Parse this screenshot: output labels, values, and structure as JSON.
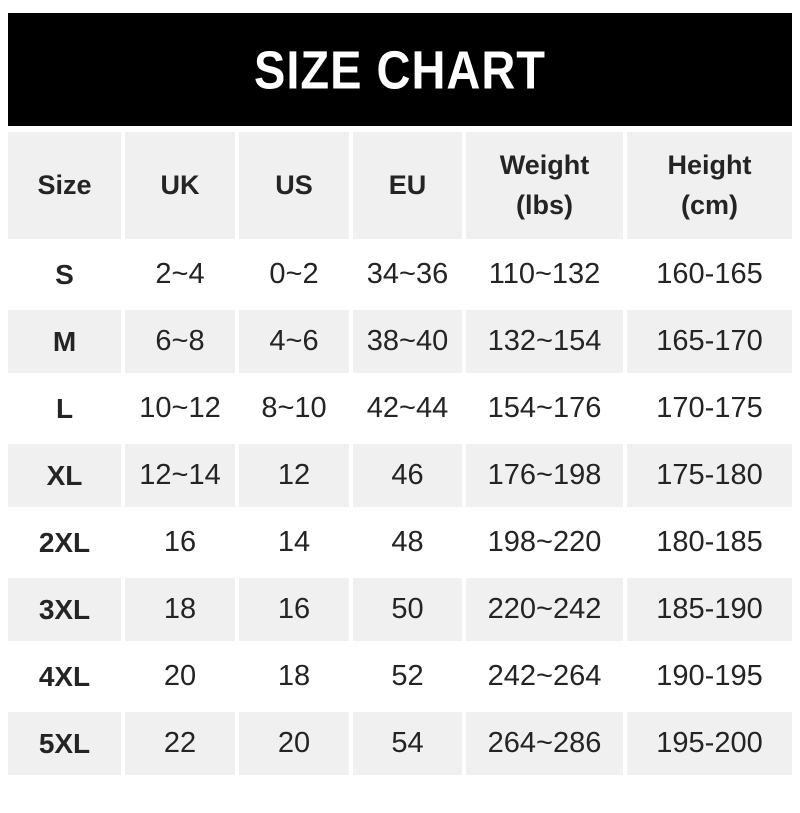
{
  "page": {
    "background": "#ffffff"
  },
  "banner": {
    "title": "SIZE CHART",
    "background": "#000000",
    "text_color": "#ffffff"
  },
  "colors": {
    "row_background": "#ffffff",
    "row_alt_background": "#f0f0f0",
    "header_background": "#f0f0f0",
    "text": "#242424"
  },
  "chart_data": {
    "type": "table",
    "title": "SIZE CHART",
    "columns": [
      "Size",
      "UK",
      "US",
      "EU",
      "Weight\n(lbs)",
      "Height\n(cm)"
    ],
    "rows": [
      [
        "S",
        "2~4",
        "0~2",
        "34~36",
        "110~132",
        "160-165"
      ],
      [
        "M",
        "6~8",
        "4~6",
        "38~40",
        "132~154",
        "165-170"
      ],
      [
        "L",
        "10~12",
        "8~10",
        "42~44",
        "154~176",
        "170-175"
      ],
      [
        "XL",
        "12~14",
        "12",
        "46",
        "176~198",
        "175-180"
      ],
      [
        "2XL",
        "16",
        "14",
        "48",
        "198~220",
        "180-185"
      ],
      [
        "3XL",
        "18",
        "16",
        "50",
        "220~242",
        "185-190"
      ],
      [
        "4XL",
        "20",
        "18",
        "52",
        "242~264",
        "190-195"
      ],
      [
        "5XL",
        "22",
        "20",
        "54",
        "264~286",
        "195-200"
      ]
    ]
  }
}
